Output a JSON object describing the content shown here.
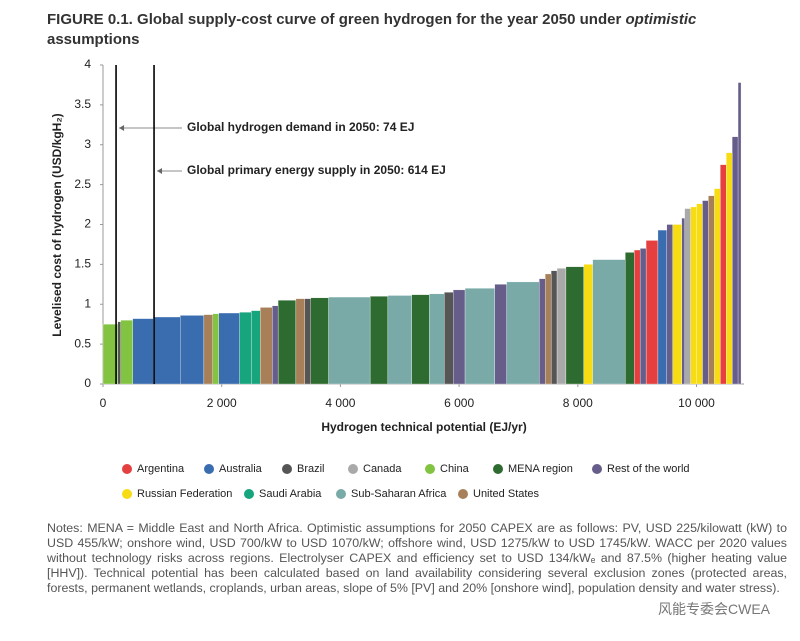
{
  "chart_data": {
    "type": "supply-curve",
    "title": [
      "FIGURE 0.1. Global supply-cost curve of green hydrogen for the year 2050 under ",
      "optimistic",
      " assumptions"
    ],
    "x_label": "Hydrogen technical potential (EJ/yr)",
    "y_label": "Levelised cost of hydrogen (USD/kgH₂)",
    "xlim": [
      0,
      10800
    ],
    "ylim": [
      0,
      4
    ],
    "xticks": [
      0,
      {
        "value": 2000,
        "label": "2 000"
      },
      {
        "value": 4000,
        "label": "4 000"
      },
      {
        "value": 6000,
        "label": "6 000"
      },
      {
        "value": 8000,
        "label": "8 000"
      },
      {
        "value": 10000,
        "label": "10 000"
      }
    ],
    "yticks": [
      0,
      0.5,
      1,
      1.5,
      2,
      2.5,
      3,
      3.5,
      4
    ],
    "annotations": [
      {
        "text": "Global hydrogen demand in 2050: 74 EJ",
        "x": 220
      },
      {
        "text": "Global primary energy supply in 2050: 614 EJ",
        "x": 860
      }
    ],
    "series": [
      {
        "name": "Argentina",
        "color": "#e5403f",
        "x0": [
          8950,
          9150,
          10400
        ],
        "x1": [
          9050,
          9350,
          10500
        ],
        "values": [
          1.68,
          1.8,
          2.75
        ]
      },
      {
        "name": "Australia",
        "color": "#3a6db0",
        "x0": [
          500,
          850,
          1300,
          1950,
          9350
        ],
        "x1": [
          850,
          1300,
          1700,
          2300,
          9500
        ],
        "values": [
          0.82,
          0.84,
          0.86,
          0.89,
          1.93
        ]
      },
      {
        "name": "Brazil",
        "color": "#555555",
        "x0": [
          250,
          3400,
          5750,
          7550
        ],
        "x1": [
          300,
          3500,
          5900,
          7650
        ],
        "values": [
          0.78,
          1.07,
          1.15,
          1.42
        ]
      },
      {
        "name": "Canada",
        "color": "#a9a9a9",
        "x0": [
          7650,
          9800
        ],
        "x1": [
          7800,
          9900
        ],
        "values": [
          1.45,
          2.2
        ]
      },
      {
        "name": "China",
        "color": "#82c341",
        "x0": [
          0,
          300,
          1850
        ],
        "x1": [
          250,
          500,
          1950
        ],
        "values": [
          0.75,
          0.8,
          0.88
        ]
      },
      {
        "name": "MENA region",
        "color": "#2e6b30",
        "x0": [
          2950,
          3500,
          4500,
          5200,
          7800,
          8800
        ],
        "x1": [
          3250,
          3800,
          4800,
          5500,
          8100,
          8950
        ],
        "values": [
          1.05,
          1.08,
          1.1,
          1.12,
          1.47,
          1.65
        ]
      },
      {
        "name": "Rest of the world",
        "color": "#675d8a",
        "x0": [
          2850,
          5900,
          6600,
          7350,
          9050,
          9500,
          9750,
          10100,
          10600,
          10700
        ],
        "x1": [
          2950,
          6100,
          6800,
          7450,
          9150,
          9600,
          9800,
          10200,
          10700,
          10750
        ],
        "values": [
          0.98,
          1.18,
          1.25,
          1.32,
          1.7,
          2.0,
          2.08,
          2.3,
          3.1,
          3.78
        ]
      },
      {
        "name": "Russian Federation",
        "color": "#f7dc14",
        "x0": [
          8100,
          9600,
          9900,
          10000,
          10300,
          10500
        ],
        "x1": [
          8250,
          9750,
          10000,
          10100,
          10400,
          10600
        ],
        "values": [
          1.5,
          2.0,
          2.22,
          2.26,
          2.45,
          2.9
        ]
      },
      {
        "name": "Saudi Arabia",
        "color": "#16a57c",
        "x0": [
          2300,
          2500
        ],
        "x1": [
          2500,
          2650
        ],
        "values": [
          0.9,
          0.92
        ]
      },
      {
        "name": "Sub-Saharan Africa",
        "color": "#7aaaa8",
        "x0": [
          3800,
          4800,
          5500,
          6100,
          6800,
          8250
        ],
        "x1": [
          4500,
          5200,
          5750,
          6600,
          7350,
          8800
        ],
        "values": [
          1.09,
          1.11,
          1.13,
          1.2,
          1.28,
          1.56
        ]
      },
      {
        "name": "United States",
        "color": "#a7805a",
        "x0": [
          1700,
          2650,
          3250,
          7450,
          10200
        ],
        "x1": [
          1850,
          2850,
          3400,
          7550,
          10300
        ],
        "values": [
          0.87,
          0.96,
          1.07,
          1.38,
          2.36
        ]
      }
    ]
  },
  "notes": "Notes: MENA = Middle East and North Africa. Optimistic assumptions for 2050 CAPEX are as follows: PV, USD 225/kilowatt (kW) to USD 455/kW; onshore wind, USD 700/kW to USD 1070/kW; offshore wind, USD 1275/kW to USD 1745/kW. WACC per 2020 values without technology risks across regions. Electrolyser CAPEX and efficiency set to USD 134/kWₑ and 87.5% (higher heating value [HHV]). Technical potential has been calculated based on land availability considering several exclusion zones (protected areas, forests, permanent wetlands, croplands, urban areas, slope of 5% [PV] and 20% [onshore wind], population density and water stress).",
  "watermark": "风能专委会CWEA"
}
